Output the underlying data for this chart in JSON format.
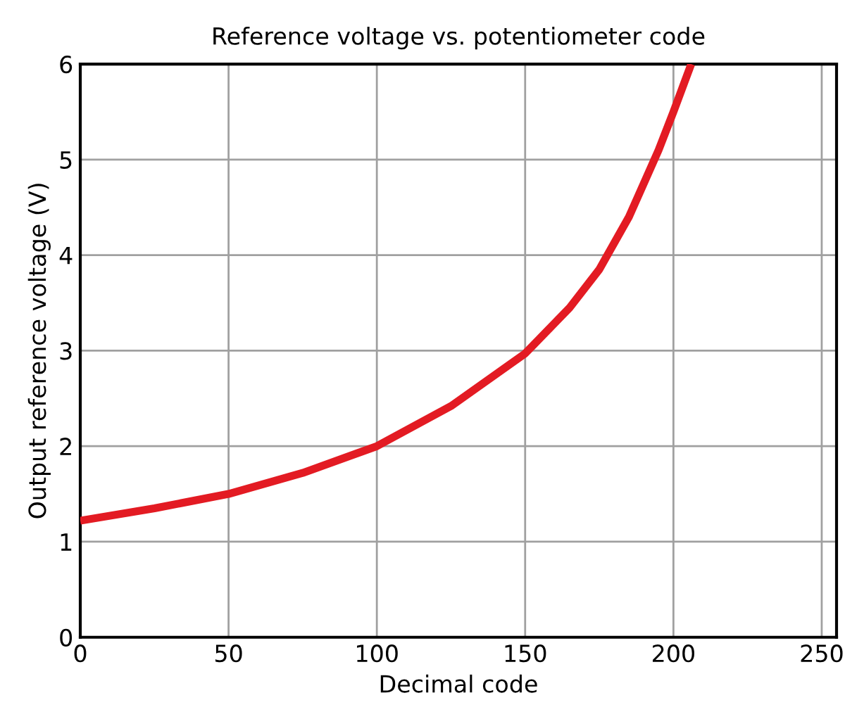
{
  "chart_data": {
    "type": "line",
    "title": "Reference voltage vs. potentiometer code",
    "xlabel": "Decimal code",
    "ylabel": "Output reference voltage (V)",
    "series": [
      {
        "color": "#e31b23",
        "x": [
          0,
          25,
          50,
          75,
          100,
          125,
          150,
          165,
          175,
          185,
          195,
          200,
          206
        ],
        "values": [
          1.22,
          1.35,
          1.5,
          1.72,
          2.0,
          2.42,
          2.97,
          3.45,
          3.85,
          4.4,
          5.1,
          5.5,
          6.0
        ]
      }
    ],
    "xlim": [
      0,
      255
    ],
    "xticks": [
      0,
      50,
      100,
      150,
      200,
      250
    ],
    "ylim": [
      0,
      6
    ],
    "yticks": [
      0,
      1,
      2,
      3,
      4,
      5,
      6
    ],
    "grid": true,
    "legend": false,
    "marker": "none",
    "line_style": "solid"
  }
}
